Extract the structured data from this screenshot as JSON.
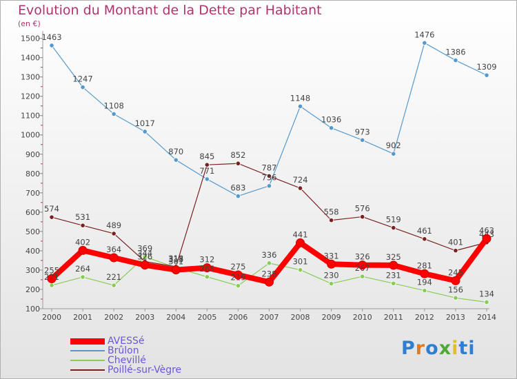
{
  "chart_data": {
    "type": "line",
    "title": "Evolution du Montant de la Dette par Habitant",
    "subtitle": "(en €)",
    "x": [
      "2000",
      "2001",
      "2002",
      "2003",
      "2004",
      "2005",
      "2006",
      "2007",
      "2008",
      "2009",
      "2010",
      "2011",
      "2012",
      "2013",
      "2014"
    ],
    "yticks": [
      100,
      200,
      300,
      400,
      500,
      600,
      700,
      800,
      900,
      1000,
      1100,
      1200,
      1300,
      1400,
      1500
    ],
    "ylim": [
      100,
      1520
    ],
    "grid": false,
    "legend_position": "bottom-left",
    "series": [
      {
        "name": "AVESSé",
        "color": "#ff0000",
        "values": [
          255,
          402,
          364,
          326,
          301,
          312,
          275,
          238,
          441,
          331,
          326,
          325,
          281,
          245,
          463
        ]
      },
      {
        "name": "Brûlon",
        "color": "#5599cc",
        "values": [
          1463,
          1247,
          1108,
          1017,
          870,
          771,
          683,
          736,
          1148,
          1036,
          973,
          902,
          1476,
          1386,
          1309
        ]
      },
      {
        "name": "Chevillé",
        "color": "#88cc55",
        "values": [
          221,
          264,
          221,
          369,
          313,
          265,
          219,
          336,
          301,
          230,
          267,
          231,
          194,
          156,
          134
        ]
      },
      {
        "name": "Poillé-sur-Vègre",
        "color": "#7a2020",
        "values": [
          574,
          531,
          489,
          344,
          318,
          845,
          852,
          787,
          724,
          558,
          576,
          519,
          461,
          401,
          443
        ]
      }
    ]
  },
  "logo": {
    "text": "Proxiti"
  }
}
